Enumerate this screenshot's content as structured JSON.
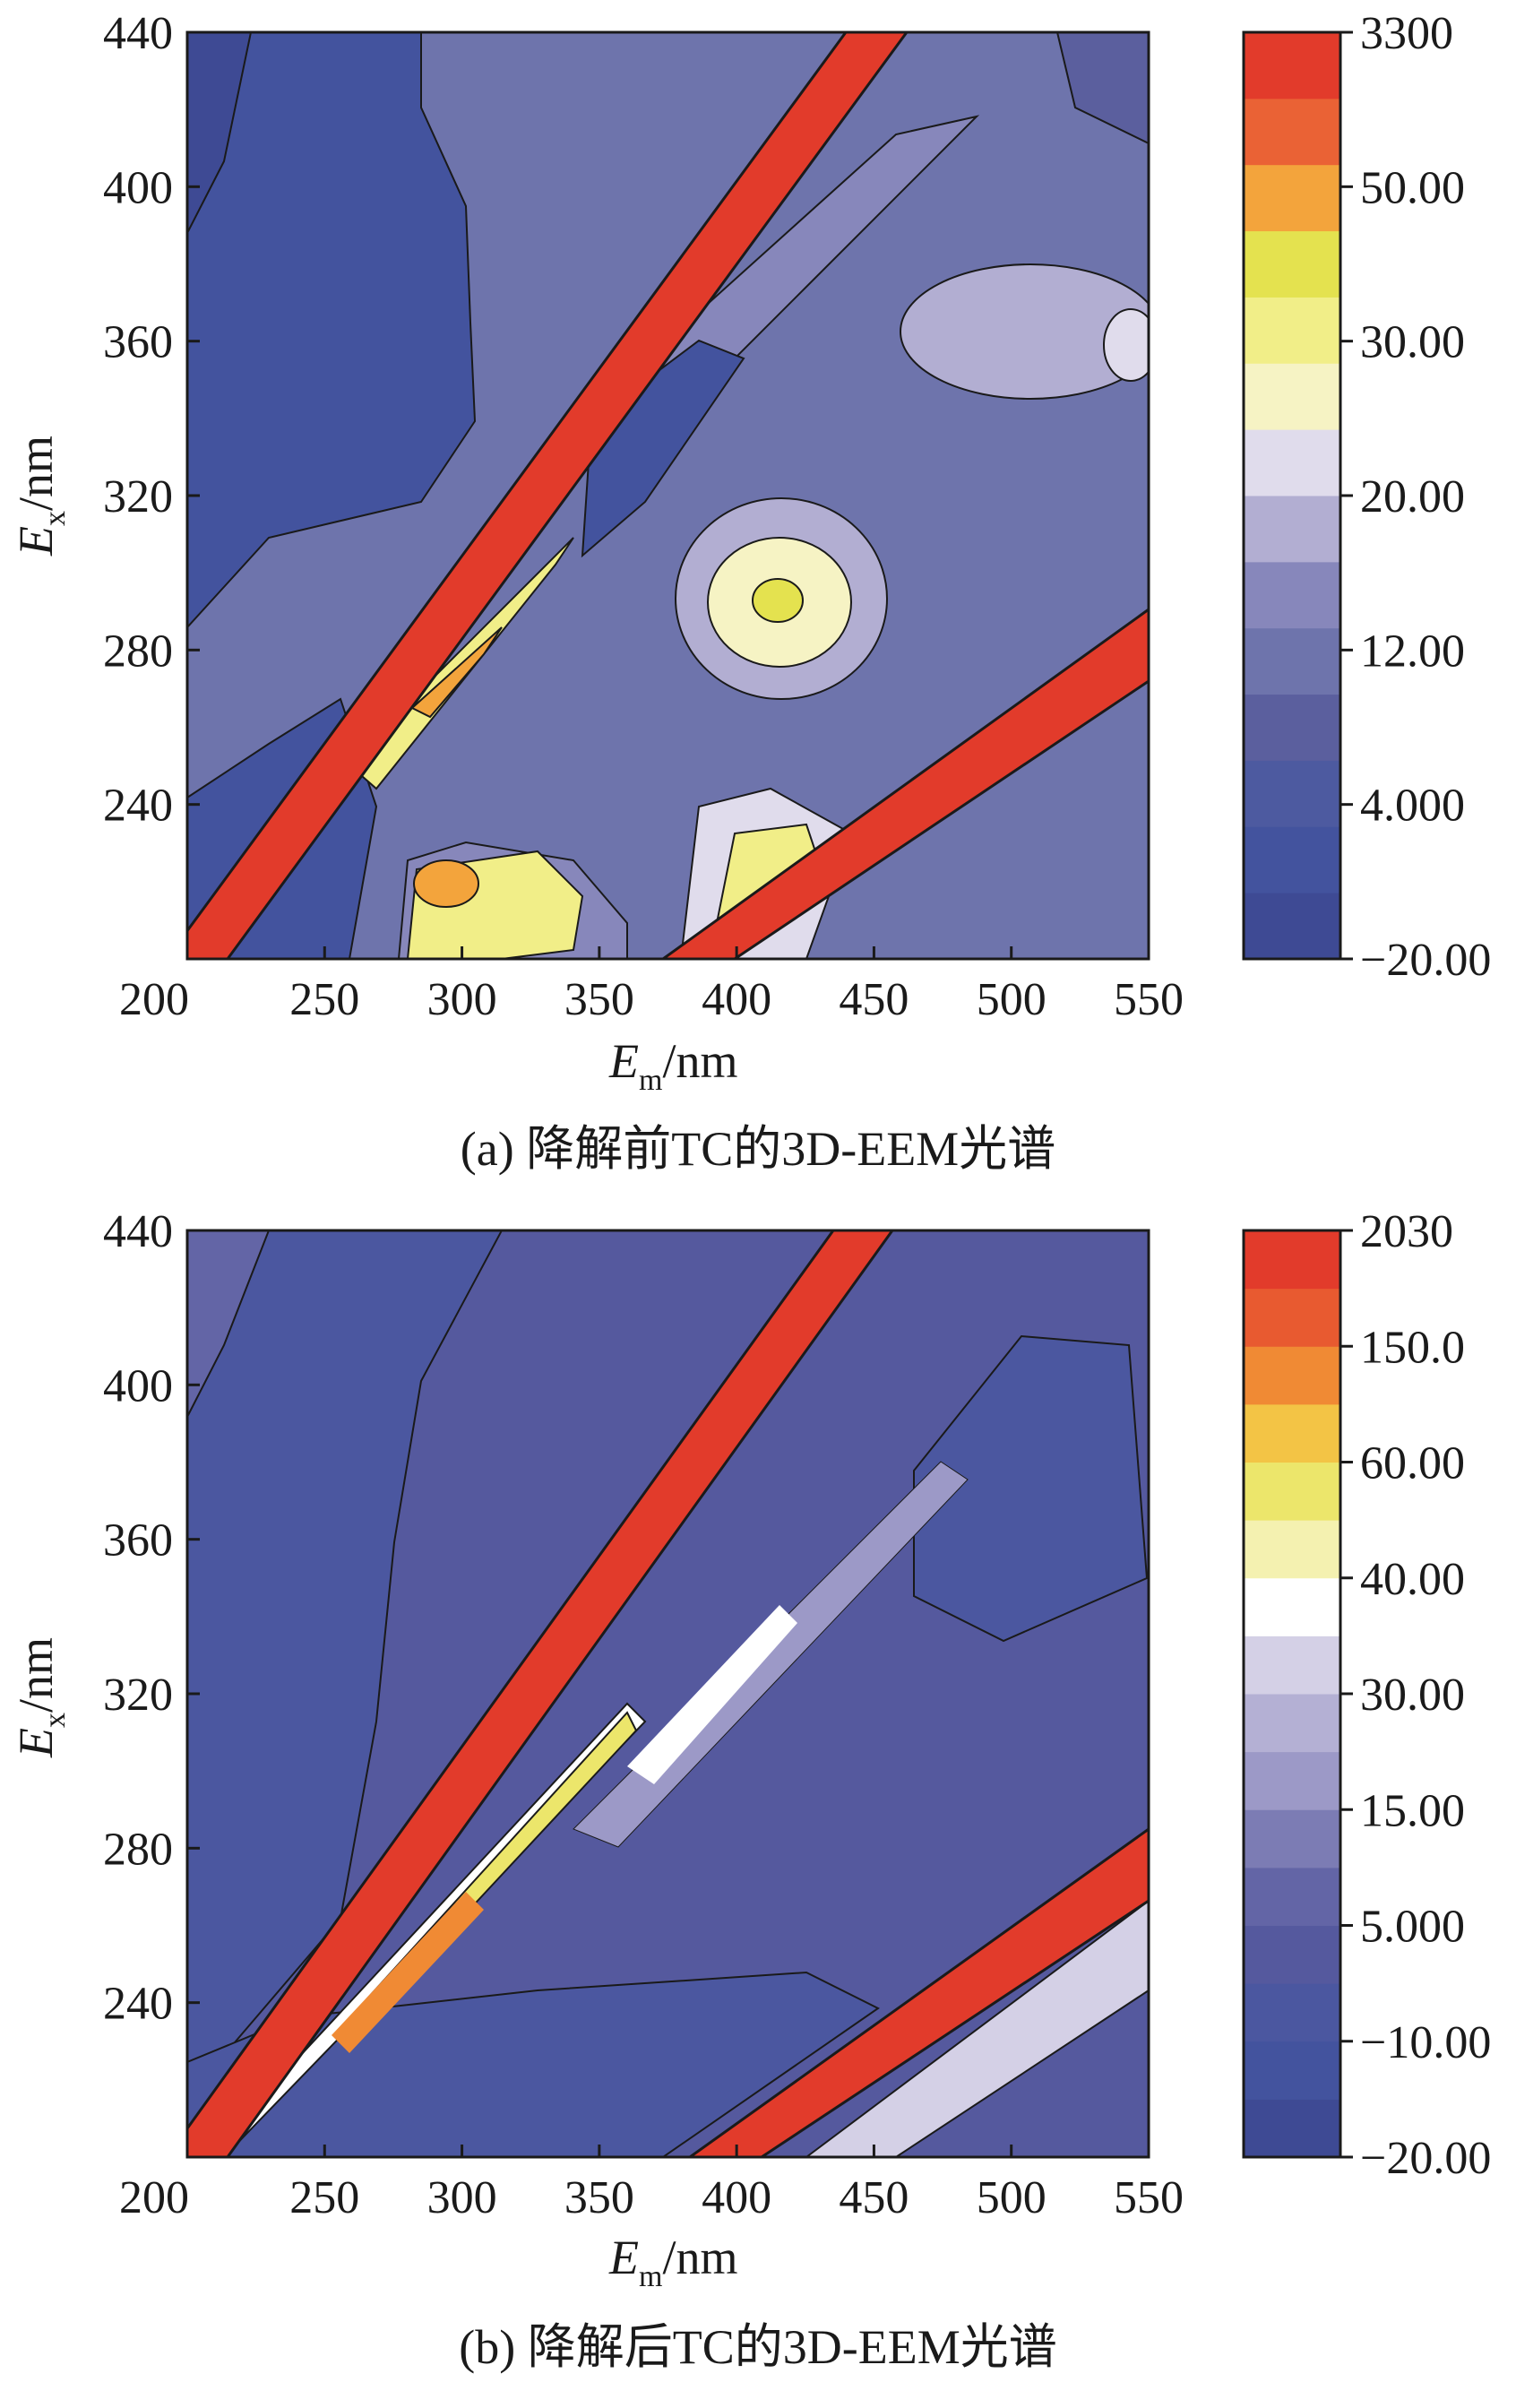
{
  "chart_data": [
    {
      "type": "heatmap",
      "subtype": "contour",
      "caption": "(a) 降解前TC的3D-EEM光谱",
      "xlabel": {
        "main": "E",
        "sub": "m",
        "unit": "/nm"
      },
      "ylabel": {
        "main": "E",
        "sub": "x",
        "unit": "/nm"
      },
      "xlim": [
        200,
        550
      ],
      "ylim": [
        200,
        440
      ],
      "xticks": [
        200,
        250,
        300,
        350,
        400,
        450,
        500,
        550
      ],
      "yticks": [
        240,
        280,
        320,
        360,
        400,
        440
      ],
      "colorbar": {
        "levels": 12,
        "colors": [
          "#3e4a94",
          "#43539e",
          "#4d5aa0",
          "#5b5f9e",
          "#6e74ac",
          "#8787bb",
          "#b2aed2",
          "#e0dcec",
          "#f6f3c4",
          "#f1ee88",
          "#e4e24f",
          "#f3a43c",
          "#ea6235",
          "#e23b2b"
        ],
        "tick_labels": [
          "3300",
          "50.00",
          "30.00",
          "20.00",
          "12.00",
          "4.000",
          "−20.00"
        ]
      },
      "features": [
        {
          "name": "first-order Rayleigh scatter",
          "em_start": 200,
          "ex_start": 200,
          "em_end": 450,
          "ex_end": 440,
          "level": "max"
        },
        {
          "name": "second-order Rayleigh scatter",
          "em_start": 380,
          "ex_start": 200,
          "em_end": 550,
          "ex_end": 282,
          "level": "max"
        },
        {
          "name": "peak",
          "em": 410,
          "ex": 292,
          "level": 30
        },
        {
          "name": "peak",
          "em": 295,
          "ex": 218,
          "level": 40
        },
        {
          "name": "peak",
          "em": 410,
          "ex": 225,
          "level": 30
        },
        {
          "name": "peak",
          "em": 293,
          "ex": 272,
          "level": 40
        }
      ]
    },
    {
      "type": "heatmap",
      "subtype": "contour",
      "caption": "(b) 降解后TC的3D-EEM光谱",
      "xlabel": {
        "main": "E",
        "sub": "m",
        "unit": "/nm"
      },
      "ylabel": {
        "main": "E",
        "sub": "x",
        "unit": "/nm"
      },
      "xlim": [
        200,
        550
      ],
      "ylim": [
        200,
        440
      ],
      "xticks": [
        200,
        250,
        300,
        350,
        400,
        450,
        500,
        550
      ],
      "yticks": [
        240,
        280,
        320,
        360,
        400,
        440
      ],
      "colorbar": {
        "levels": 15,
        "colors": [
          "#3e4a94",
          "#43539e",
          "#4b57a0",
          "#55599e",
          "#6365a6",
          "#7c7cb4",
          "#9c99c7",
          "#b4b0d4",
          "#d4d0e6",
          "#ffffff",
          "#f4f1b0",
          "#ece66b",
          "#f3c445",
          "#f08a34",
          "#e85a30",
          "#e23b2b"
        ],
        "tick_labels": [
          "2030",
          "150.0",
          "60.00",
          "40.00",
          "30.00",
          "15.00",
          "5.000",
          "−10.00",
          "−20.00"
        ]
      },
      "features": [
        {
          "name": "first-order Rayleigh scatter",
          "em_start": 200,
          "ex_start": 200,
          "em_end": 450,
          "ex_end": 440,
          "level": "max"
        },
        {
          "name": "second-order Rayleigh scatter",
          "em_start": 385,
          "ex_start": 200,
          "em_end": 550,
          "ex_end": 285,
          "level": "max"
        },
        {
          "name": "residual ridge",
          "em_start": 290,
          "ex_start": 270,
          "em_end": 370,
          "ex_end": 325,
          "level": 40
        }
      ]
    }
  ]
}
